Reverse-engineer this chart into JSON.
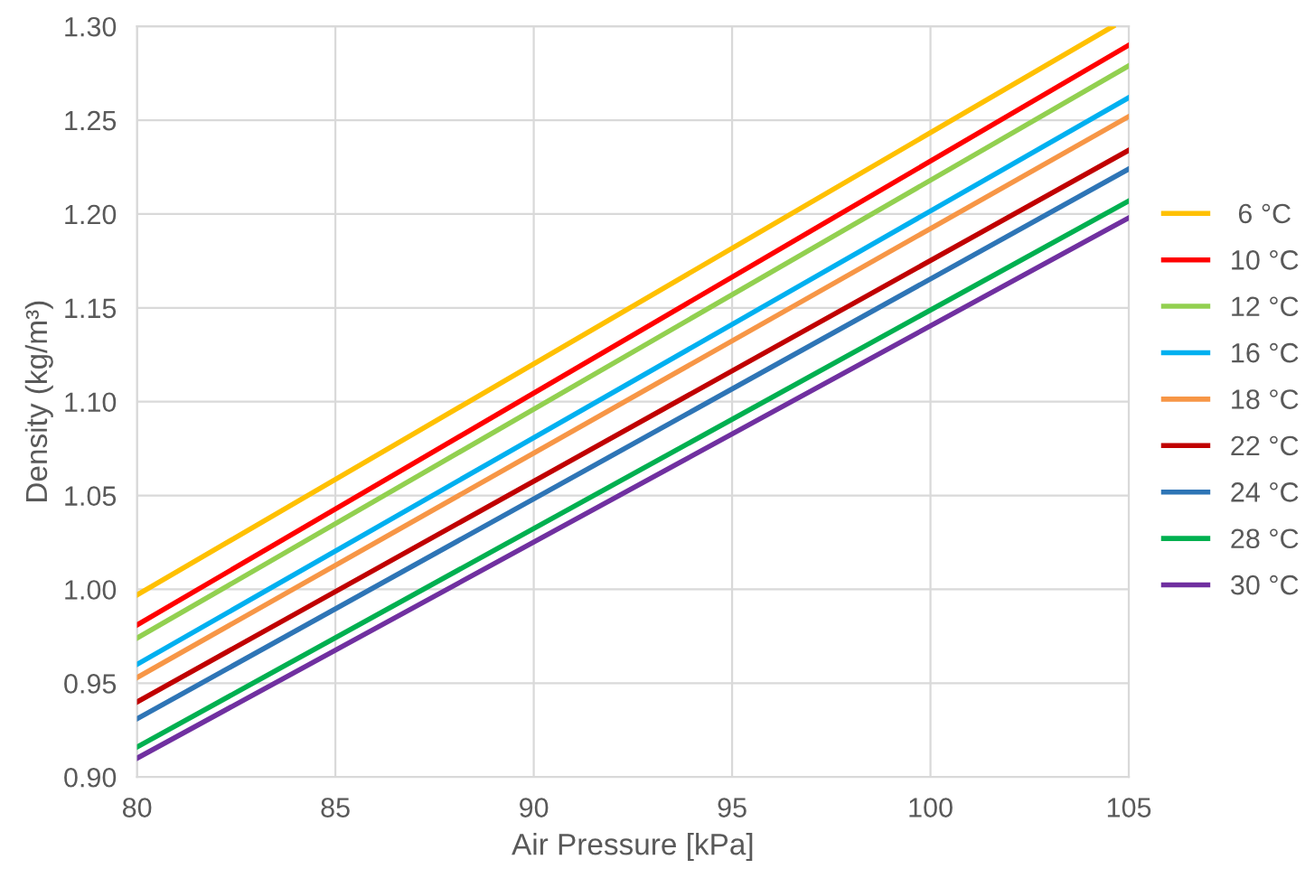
{
  "chart_data": {
    "type": "line",
    "xlabel": "Air Pressure [kPa]",
    "ylabel": "Density (kg/m³)",
    "xlim": [
      80,
      105
    ],
    "xticks": [
      80,
      85,
      90,
      95,
      100,
      105
    ],
    "ylim": [
      0.9,
      1.3
    ],
    "yticks": [
      {
        "value": 0.9,
        "label": "0.90"
      },
      {
        "value": 0.95,
        "label": "0.95"
      },
      {
        "value": 1.0,
        "label": "1.00"
      },
      {
        "value": 1.05,
        "label": "1.05"
      },
      {
        "value": 1.1,
        "label": "1.10"
      },
      {
        "value": 1.15,
        "label": "1.15"
      },
      {
        "value": 1.2,
        "label": "1.20"
      },
      {
        "value": 1.25,
        "label": "1.25"
      },
      {
        "value": 1.3,
        "label": "1.30"
      }
    ],
    "grid": true,
    "legend": "right",
    "marker": "none",
    "line_style": "solid",
    "series": [
      {
        "name": " 6 °C",
        "color": "#ffc000",
        "x": [
          80,
          104.6
        ],
        "values": [
          0.997,
          1.3
        ]
      },
      {
        "name": "10 °C",
        "color": "#ff0000",
        "x": [
          80,
          105
        ],
        "values": [
          0.981,
          1.29
        ]
      },
      {
        "name": "12 °C",
        "color": "#92d050",
        "x": [
          80,
          105
        ],
        "values": [
          0.974,
          1.279
        ]
      },
      {
        "name": "16 °C",
        "color": "#00b0f0",
        "x": [
          80,
          105
        ],
        "values": [
          0.96,
          1.262
        ]
      },
      {
        "name": "18 °C",
        "color": "#f79646",
        "x": [
          80,
          105
        ],
        "values": [
          0.953,
          1.252
        ]
      },
      {
        "name": "22 °C",
        "color": "#c00000",
        "x": [
          80,
          105
        ],
        "values": [
          0.94,
          1.234
        ]
      },
      {
        "name": "24 °C",
        "color": "#2e75b6",
        "x": [
          80,
          105
        ],
        "values": [
          0.931,
          1.224
        ]
      },
      {
        "name": "28 °C",
        "color": "#00b050",
        "x": [
          80,
          105
        ],
        "values": [
          0.916,
          1.207
        ]
      },
      {
        "name": "30 °C",
        "color": "#7030a0",
        "x": [
          80,
          105
        ],
        "values": [
          0.91,
          1.198
        ]
      }
    ]
  }
}
